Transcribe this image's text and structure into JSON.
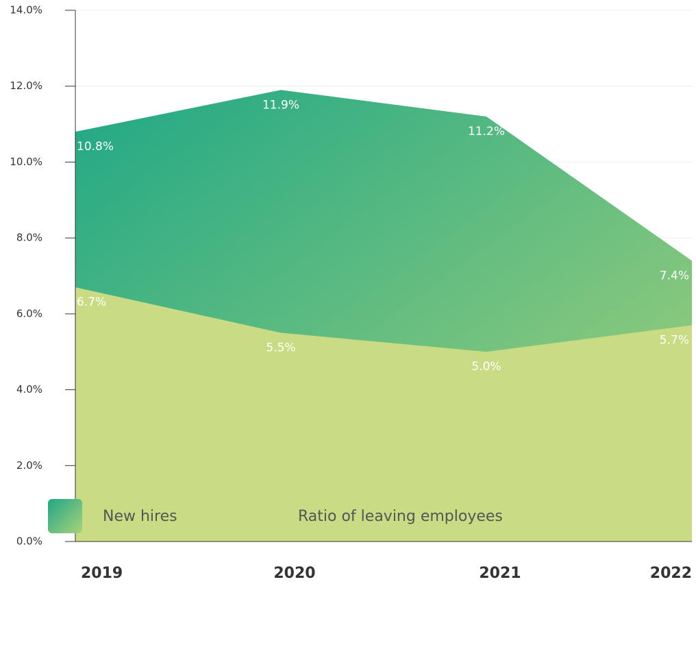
{
  "chart_data": {
    "type": "area",
    "categories": [
      "2019",
      "2020",
      "2021",
      "2022"
    ],
    "series": [
      {
        "name": "New hires",
        "color": "#1fa886",
        "color_end": "#a9d27a",
        "values": [
          10.8,
          11.9,
          11.2,
          7.4
        ],
        "value_labels": [
          "10.8%",
          "11.9%",
          "11.2%",
          "7.4%"
        ]
      },
      {
        "name": "Ratio of leaving employees",
        "color": "#c9dc84",
        "values": [
          6.7,
          5.5,
          5.0,
          5.7
        ],
        "value_labels": [
          "6.7%",
          "5.5%",
          "5.0%",
          "5.7%"
        ]
      }
    ],
    "ylim": [
      0,
      14
    ],
    "yticks": [
      {
        "value": 0,
        "label": "0.0%"
      },
      {
        "value": 2,
        "label": "2.0%"
      },
      {
        "value": 4,
        "label": "4.0%"
      },
      {
        "value": 6,
        "label": "6.0%"
      },
      {
        "value": 8,
        "label": "8.0%"
      },
      {
        "value": 10,
        "label": "10.0%"
      },
      {
        "value": 12,
        "label": "12.0%"
      },
      {
        "value": 14,
        "label": "14.0%"
      }
    ],
    "grid": true
  }
}
